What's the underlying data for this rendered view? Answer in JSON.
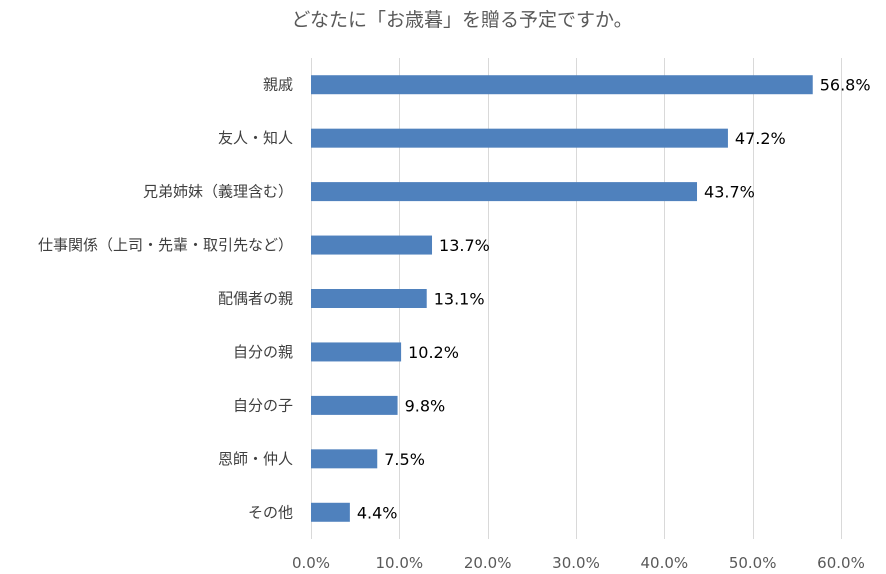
{
  "chart_data": {
    "type": "bar",
    "orientation": "horizontal",
    "title": "どなたに「お歳暮」を贈る予定ですか。",
    "categories": [
      "親戚",
      "友人・知人",
      "兄弟姉妹（義理含む）",
      "仕事関係（上司・先輩・取引先など）",
      "配偶者の親",
      "自分の親",
      "自分の子",
      "恩師・仲人",
      "その他"
    ],
    "values": [
      56.8,
      47.2,
      43.7,
      13.7,
      13.1,
      10.2,
      9.8,
      7.5,
      4.4
    ],
    "value_labels": [
      "56.8%",
      "47.2%",
      "43.7%",
      "13.7%",
      "13.1%",
      "10.2%",
      "9.8%",
      "7.5%",
      "4.4%"
    ],
    "xlim": [
      0,
      60
    ],
    "xticks": [
      0,
      10,
      20,
      30,
      40,
      50,
      60
    ],
    "xtick_labels": [
      "0.0%",
      "10.0%",
      "20.0%",
      "30.0%",
      "40.0%",
      "50.0%",
      "60.0%"
    ],
    "xlabel": "",
    "ylabel": "",
    "grid": "vertical",
    "legend": "none",
    "bar_color": "#4f81bd",
    "grid_color": "#d9d9d9"
  }
}
